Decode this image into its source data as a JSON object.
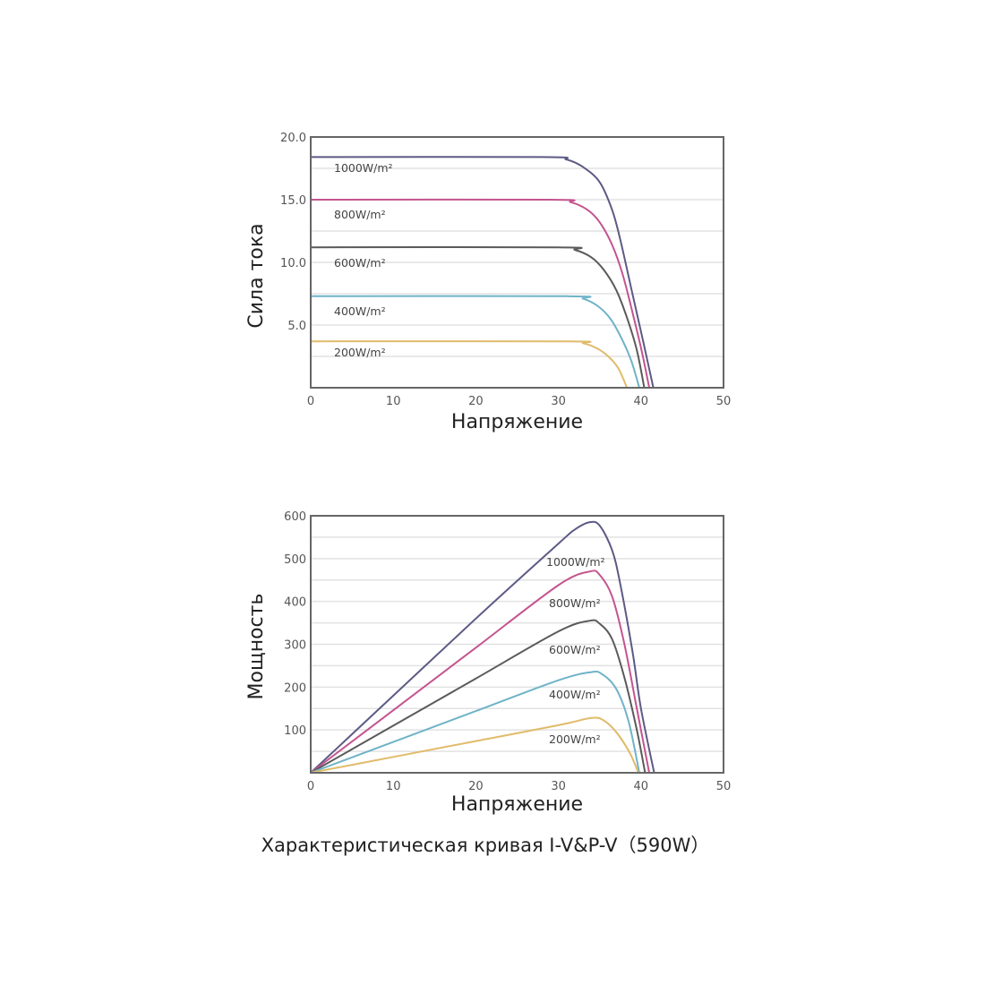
{
  "chart_data": [
    {
      "type": "line",
      "title": "",
      "xlabel": "Напряжение",
      "ylabel": "Сила тока",
      "xlim": [
        0,
        50
      ],
      "ylim": [
        0,
        20
      ],
      "xticks": [
        "0",
        "10",
        "20",
        "30",
        "40",
        "50"
      ],
      "yticks": [
        "5.0",
        "10.0",
        "15.0",
        "20.0"
      ],
      "ytick_values": [
        5,
        10,
        15,
        20
      ],
      "grid": true,
      "series": [
        {
          "name": "1000W/m²",
          "color": "#5c5a85",
          "points": [
            [
              0,
              18.4
            ],
            [
              28,
              18.4
            ],
            [
              31,
              18.2
            ],
            [
              33,
              17.6
            ],
            [
              35,
              16.4
            ],
            [
              36.5,
              14.2
            ],
            [
              37.5,
              11.8
            ],
            [
              39,
              7.4
            ],
            [
              40.3,
              3.6
            ],
            [
              41.5,
              0
            ]
          ]
        },
        {
          "name": "800W/m²",
          "color": "#c4548f",
          "points": [
            [
              0,
              15.0
            ],
            [
              29,
              15.0
            ],
            [
              31.5,
              14.8
            ],
            [
              33.5,
              14.2
            ],
            [
              35,
              13.2
            ],
            [
              36.5,
              11.4
            ],
            [
              37.8,
              9.0
            ],
            [
              39.2,
              5.4
            ],
            [
              40.2,
              2.6
            ],
            [
              41.0,
              0
            ]
          ]
        },
        {
          "name": "600W/m²",
          "color": "#5a5a5a",
          "points": [
            [
              0,
              11.2
            ],
            [
              30,
              11.2
            ],
            [
              32,
              11.0
            ],
            [
              34,
              10.4
            ],
            [
              35.5,
              9.4
            ],
            [
              37,
              7.8
            ],
            [
              38.3,
              5.6
            ],
            [
              39.5,
              3.0
            ],
            [
              40.4,
              0
            ]
          ]
        },
        {
          "name": "400W/m²",
          "color": "#6fb3c8",
          "points": [
            [
              0,
              7.3
            ],
            [
              31,
              7.3
            ],
            [
              33,
              7.1
            ],
            [
              34.8,
              6.5
            ],
            [
              36.3,
              5.5
            ],
            [
              37.6,
              4.0
            ],
            [
              38.8,
              2.2
            ],
            [
              39.8,
              0
            ]
          ]
        },
        {
          "name": "200W/m²",
          "color": "#e0bb6a",
          "points": [
            [
              0,
              3.7
            ],
            [
              31,
              3.7
            ],
            [
              33,
              3.55
            ],
            [
              34.8,
              3.1
            ],
            [
              36.2,
              2.4
            ],
            [
              37.3,
              1.5
            ],
            [
              38.3,
              0
            ]
          ]
        }
      ]
    },
    {
      "type": "line",
      "title": "",
      "xlabel": "Напряжение",
      "ylabel": "Мощность",
      "xlim": [
        0,
        50
      ],
      "ylim": [
        0,
        600
      ],
      "xticks": [
        "0",
        "10",
        "20",
        "30",
        "40",
        "50"
      ],
      "yticks": [
        "100",
        "200",
        "300",
        "400",
        "500",
        "600"
      ],
      "ytick_values": [
        100,
        200,
        300,
        400,
        500,
        600
      ],
      "grid": true,
      "series": [
        {
          "name": "1000W/m²",
          "color": "#5c5a85",
          "points": [
            [
              0,
              0
            ],
            [
              10,
              180
            ],
            [
              20,
              360
            ],
            [
              30,
              535
            ],
            [
              32,
              568
            ],
            [
              33.8,
              585
            ],
            [
              35,
              577
            ],
            [
              36.5,
              520
            ],
            [
              37.5,
              440
            ],
            [
              39,
              280
            ],
            [
              40,
              150
            ],
            [
              41.6,
              0
            ]
          ]
        },
        {
          "name": "800W/m²",
          "color": "#c4548f",
          "points": [
            [
              0,
              0
            ],
            [
              10,
              146
            ],
            [
              20,
              292
            ],
            [
              30,
              438
            ],
            [
              33.8,
              470
            ],
            [
              35,
              462
            ],
            [
              36.5,
              412
            ],
            [
              38,
              300
            ],
            [
              39.5,
              150
            ],
            [
              41.0,
              0
            ]
          ]
        },
        {
          "name": "600W/m²",
          "color": "#5a5a5a",
          "points": [
            [
              0,
              0
            ],
            [
              10,
              110
            ],
            [
              20,
              220
            ],
            [
              30,
              330
            ],
            [
              33.8,
              355
            ],
            [
              35,
              348
            ],
            [
              36.5,
              312
            ],
            [
              38,
              222
            ],
            [
              39.5,
              100
            ],
            [
              40.5,
              0
            ]
          ]
        },
        {
          "name": "400W/m²",
          "color": "#6fb3c8",
          "points": [
            [
              0,
              0
            ],
            [
              10,
              72
            ],
            [
              20,
              144
            ],
            [
              30,
              216
            ],
            [
              34,
              235
            ],
            [
              35.3,
              230
            ],
            [
              37,
              196
            ],
            [
              38.5,
              120
            ],
            [
              39.8,
              0
            ]
          ]
        },
        {
          "name": "200W/m²",
          "color": "#e0bb6a",
          "points": [
            [
              0,
              0
            ],
            [
              10,
              37
            ],
            [
              20,
              74
            ],
            [
              30,
              111
            ],
            [
              34,
              128
            ],
            [
              35.5,
              122
            ],
            [
              37,
              95
            ],
            [
              38.6,
              48
            ],
            [
              39.7,
              0
            ]
          ]
        }
      ]
    }
  ],
  "caption": "Характеристическая кривая  I-V&P-V（590W）"
}
